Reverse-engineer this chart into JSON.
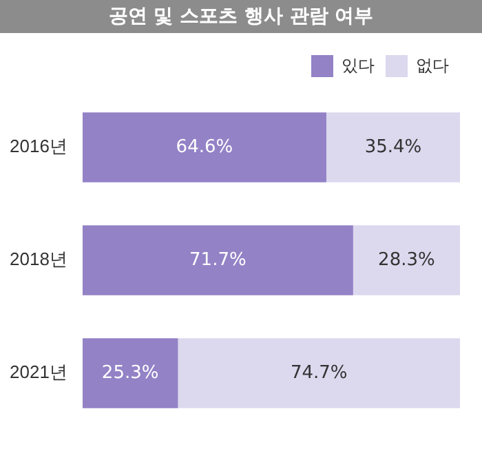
{
  "chart_data": {
    "type": "bar",
    "orientation": "horizontal",
    "stacked": true,
    "tick_labels": "y",
    "title": "공연 및 스포츠 행사 관람 여부",
    "legend": "top right",
    "categories": [
      "2016년",
      "2018년",
      "2021년"
    ],
    "series": [
      {
        "name": "있다",
        "color": "#9382c6",
        "values": [
          64.6,
          71.7,
          25.3
        ],
        "value_labels": [
          "64.6%",
          "71.7%",
          "25.3%"
        ]
      },
      {
        "name": "없다",
        "color": "#dcd8ee",
        "values": [
          35.4,
          28.3,
          74.7
        ],
        "value_labels": [
          "35.4%",
          "28.3%",
          "74.7%"
        ]
      }
    ]
  }
}
